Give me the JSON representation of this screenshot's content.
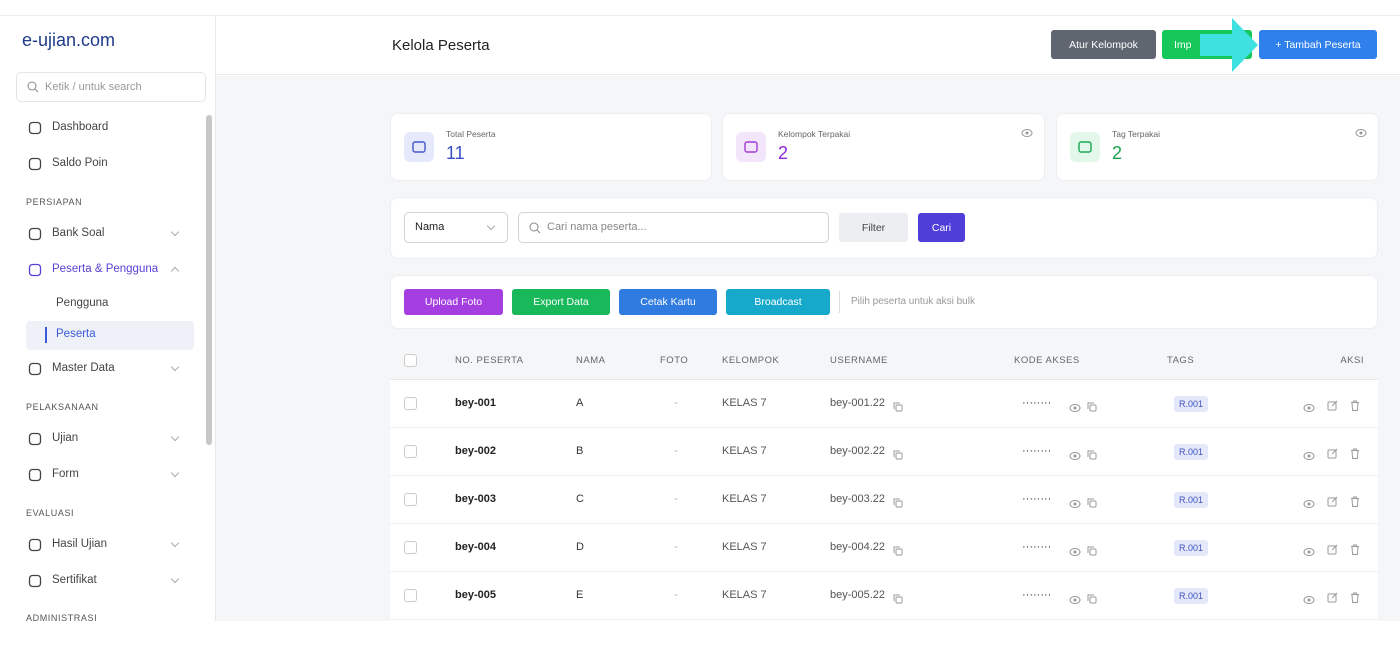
{
  "sidebar": {
    "brand": "e-ujian.com",
    "search_placeholder": "Ketik / untuk search",
    "items": [
      {
        "label": "Dashboard"
      },
      {
        "label": "Saldo Poin"
      },
      {
        "section": "PERSIAPAN"
      },
      {
        "label": "Bank Soal"
      },
      {
        "label": "Peserta & Pengguna"
      },
      {
        "label": "Pengguna"
      },
      {
        "label": "Peserta"
      },
      {
        "label": "Master Data"
      },
      {
        "section": "PELAKSANAAN"
      },
      {
        "label": "Ujian"
      },
      {
        "label": "Form"
      },
      {
        "section": "EVALUASI"
      },
      {
        "label": "Hasil Ujian"
      },
      {
        "label": "Sertifikat"
      },
      {
        "section": "ADMINISTRASI"
      }
    ]
  },
  "header": {
    "title": "Kelola Peserta",
    "buttons": [
      "Atur Kelompok",
      "Imp",
      "+ Tambah Peserta"
    ]
  },
  "stats": [
    {
      "label": "Total Peserta",
      "value": 11
    },
    {
      "label": "Kelompok Terpakai",
      "value": 2
    },
    {
      "label": "Tag Terpakai",
      "value": 2
    }
  ],
  "filter": {
    "select": "Nama",
    "search_placeholder": "Cari nama peserta...",
    "filter_button": "Filter",
    "search_button": "Cari"
  },
  "bulk": {
    "buttons": [
      "Upload Foto",
      "Export Data",
      "Cetak Kartu",
      "Broadcast"
    ],
    "hint": "Pilih peserta untuk aksi bulk"
  },
  "table": {
    "columns": [
      "NO. PESERTA",
      "NAMA",
      "FOTO",
      "KELOMPOK",
      "USERNAME",
      "KODE AKSES",
      "TAGS",
      "AKSI"
    ],
    "rows": [
      [
        "bey-001",
        "A",
        "-",
        "KELAS 7",
        "bey-001.22",
        "········",
        "R.001"
      ],
      [
        "bey-002",
        "B",
        "-",
        "KELAS 7",
        "bey-002.22",
        "········",
        "R.001"
      ],
      [
        "bey-003",
        "C",
        "-",
        "KELAS 7",
        "bey-003.22",
        "········",
        "R.001"
      ],
      [
        "bey-004",
        "D",
        "-",
        "KELAS 7",
        "bey-004.22",
        "········",
        "R.001"
      ],
      [
        "bey-005",
        "E",
        "-",
        "KELAS 7",
        "bey-005.22",
        "········",
        "R.001"
      ]
    ]
  }
}
